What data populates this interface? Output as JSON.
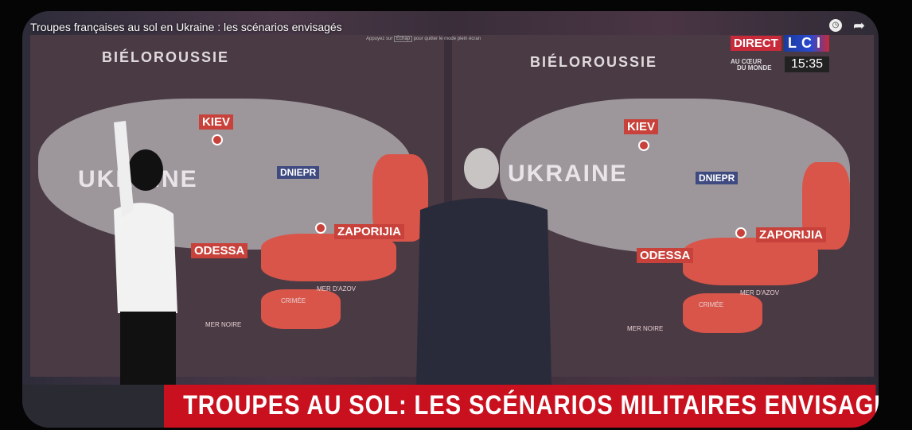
{
  "video": {
    "title": "Troupes françaises au sol en Ukraine : les scénarios envisagés",
    "fullscreen_hint": {
      "before": "Appuyez sur",
      "key": "Échap",
      "after": "pour quitter le mode plein écran"
    }
  },
  "overlay": {
    "direct": "DIRECT",
    "channel": "LCI",
    "slogan_line1": "AU CŒUR",
    "slogan_line2": "DU MONDE",
    "time": "15:35"
  },
  "icons": {
    "clock": "clock-icon",
    "share": "share-icon"
  },
  "maps": [
    {
      "country": "BIÉLOROUSSIE",
      "ukraine": "UKRAINE",
      "kiev": "KIEV",
      "dniepr": "DNIEPR",
      "zaporijia": "ZAPORIJIA",
      "odessa": "ODESSA",
      "azov": "MER D'AZOV",
      "crimee": "CRIMÉE",
      "mer_noire": "MER NOIRE"
    },
    {
      "country": "BIÉLOROUSSIE",
      "ukraine": "UKRAINE",
      "kiev": "KIEV",
      "dniepr": "DNIEPR",
      "zaporijia": "ZAPORIJIA",
      "odessa": "ODESSA",
      "azov": "MER D'AZOV",
      "crimee": "CRIMÉE",
      "mer_noire": "MER NOIRE"
    }
  ],
  "banner": "TROUPES AU SOL: LES SCÉNARIOS MILITAIRES ENVISAGÉS",
  "colors": {
    "banner": "#c8101e",
    "occupied": "#d9554a",
    "map_label": "#c8413a"
  }
}
